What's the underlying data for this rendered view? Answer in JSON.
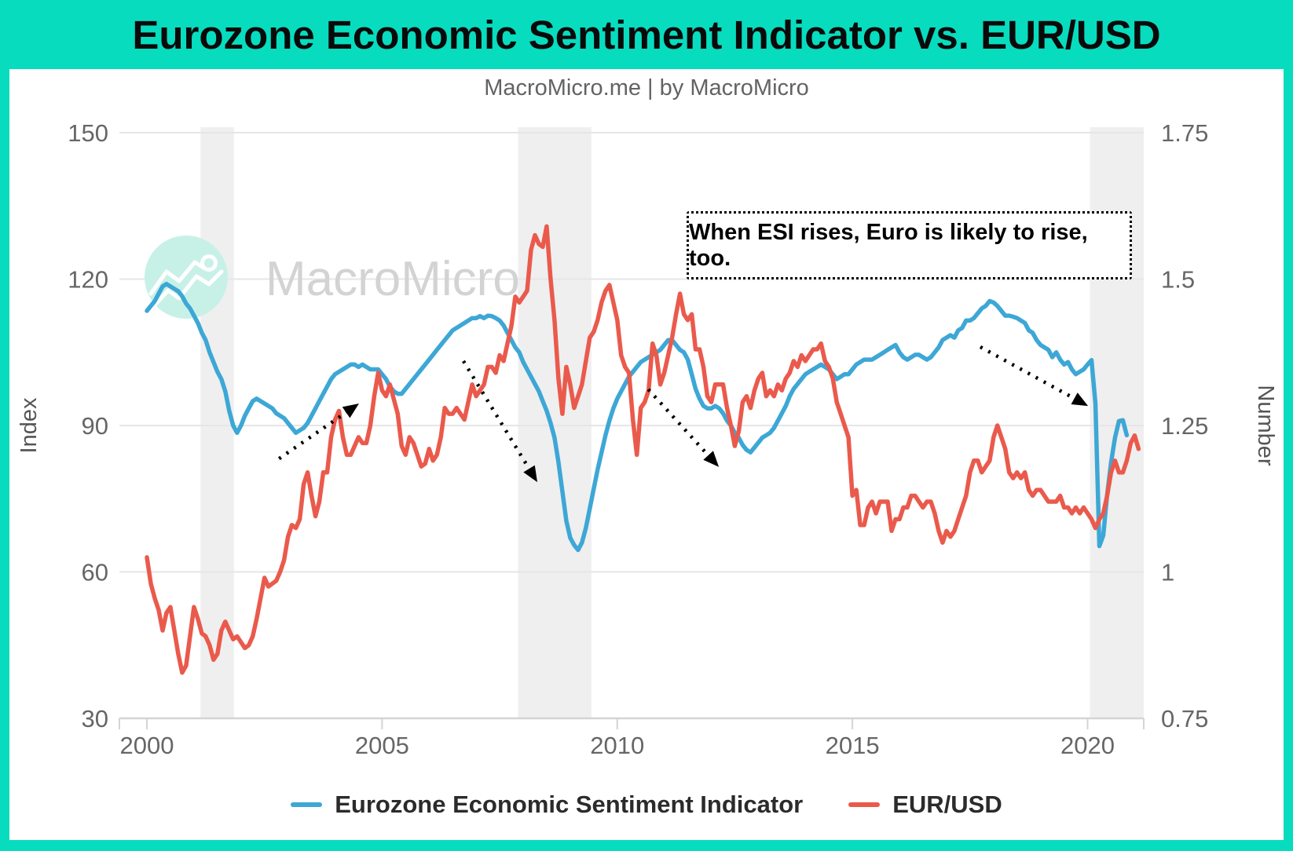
{
  "header": {
    "title": "Eurozone Economic Sentiment Indicator vs. EUR/USD",
    "subtitle": "MacroMicro.me | by MacroMicro"
  },
  "watermark": {
    "text": "MacroMicro",
    "logo": "macromicro-mountain-logo"
  },
  "annotation_box": {
    "text": "When ESI rises, Euro is likely to rise, too."
  },
  "colors": {
    "frame_teal": "#07dcbf",
    "esi_blue": "#3da7d6",
    "eurusd_red": "#ea5a4c",
    "recession_band": "#efefef",
    "gridline": "#e6e6e6",
    "axis_line": "#d4d4d4",
    "tick_label": "#666666",
    "watermark_gray": "#d3d3d3",
    "logo_mint": "#c7f1e7"
  },
  "legend": [
    {
      "label": "Eurozone Economic Sentiment Indicator",
      "color": "#3da7d6"
    },
    {
      "label": "EUR/USD",
      "color": "#ea5a4c"
    }
  ],
  "chart_data": {
    "type": "line",
    "title": "Eurozone Economic Sentiment Indicator vs. EUR/USD",
    "x_range": [
      2000,
      2021.21
    ],
    "x_ticks": [
      2000,
      2005,
      2010,
      2015,
      2020
    ],
    "left_axis": {
      "title": "Index",
      "range": [
        30,
        150
      ],
      "ticks": [
        150,
        120,
        90,
        60,
        30
      ]
    },
    "right_axis": {
      "title": "Number",
      "range": [
        0.75,
        1.75
      ],
      "ticks": [
        1.75,
        1.5,
        1.25,
        1,
        0.75
      ]
    },
    "grid": "horizontal",
    "legend_position": "bottom",
    "recession_bands": [
      [
        2001.14,
        2001.85
      ],
      [
        2007.89,
        2009.45
      ],
      [
        2020.05,
        2021.21
      ]
    ],
    "series": [
      {
        "name": "Eurozone Economic Sentiment Indicator",
        "axis": "left",
        "color": "#3da7d6",
        "start_year": 2000,
        "points_per_year": 12,
        "values": [
          113.5,
          114.5,
          115.5,
          117,
          118.5,
          119,
          118.5,
          118,
          117.5,
          116.5,
          115,
          114,
          112.5,
          111,
          109,
          107.5,
          105,
          103,
          101,
          99.5,
          97,
          93,
          90,
          88.5,
          90,
          92,
          93.5,
          95,
          95.5,
          95,
          94.5,
          94,
          93.5,
          92.5,
          92,
          91.5,
          90.5,
          89.5,
          88.5,
          89,
          89.5,
          90.5,
          92,
          93.5,
          95,
          96.5,
          98,
          99.5,
          100.5,
          101,
          101.5,
          102,
          102.5,
          102.5,
          102,
          102.5,
          102,
          101.5,
          101.5,
          101.5,
          100.5,
          99.5,
          98,
          97,
          96.5,
          96.5,
          97.5,
          98.5,
          99.5,
          100.5,
          101.5,
          102.5,
          103.5,
          104.5,
          105.5,
          106.5,
          107.5,
          108.5,
          109.5,
          110,
          110.5,
          111,
          111.5,
          112,
          112,
          112.4,
          112,
          112.5,
          112.4,
          112,
          111.5,
          110.5,
          109,
          107.5,
          106,
          105,
          103,
          101.5,
          100,
          98.5,
          97,
          95,
          93,
          90.5,
          87.5,
          82.5,
          76.5,
          70.5,
          67,
          65.5,
          64.5,
          66,
          69,
          73,
          77,
          81,
          84.5,
          88,
          91,
          93.5,
          95.5,
          97,
          98.5,
          100,
          101,
          102,
          103,
          103.5,
          104,
          104.5,
          105,
          105.5,
          106.5,
          107.5,
          107.5,
          106.5,
          105.5,
          105,
          103.5,
          100.5,
          97.5,
          95.5,
          94,
          93.5,
          93.5,
          94,
          93.5,
          92.5,
          91,
          90,
          88.5,
          87.5,
          86,
          85,
          84.5,
          85.5,
          86.5,
          87.5,
          88,
          88.5,
          89.5,
          91,
          92.5,
          94,
          96,
          97.5,
          98.5,
          99.5,
          100.5,
          101,
          101.5,
          102,
          102.5,
          102,
          101.5,
          100.5,
          99.5,
          100,
          100.5,
          100.5,
          101.5,
          102.5,
          103,
          103.5,
          103.5,
          103.5,
          104,
          104.5,
          105,
          105.5,
          106,
          106.5,
          105,
          104,
          103.5,
          104,
          104.5,
          104.5,
          104,
          103.5,
          104,
          105,
          106,
          107.5,
          108,
          108.5,
          108,
          109.5,
          110,
          111.5,
          111.5,
          112,
          113,
          114,
          114.5,
          115.5,
          115.2,
          114.5,
          113.5,
          112.5,
          112.5,
          112.3,
          112,
          111.5,
          111,
          109.5,
          109,
          107.5,
          106.5,
          106,
          105.5,
          104,
          105,
          103.5,
          102.5,
          103,
          101.5,
          100.5,
          101,
          101.5,
          102.5,
          103.4,
          94.5,
          65.3,
          67.5,
          75.8,
          82.4,
          87.5,
          90.9,
          91.1,
          88
        ]
      },
      {
        "name": "EUR/USD",
        "axis": "right",
        "color": "#ea5a4c",
        "start_year": 2000,
        "points_per_year": 12,
        "values": [
          1.025,
          0.98,
          0.955,
          0.935,
          0.9,
          0.93,
          0.94,
          0.9,
          0.86,
          0.828,
          0.84,
          0.89,
          0.94,
          0.92,
          0.895,
          0.89,
          0.875,
          0.85,
          0.86,
          0.9,
          0.915,
          0.9,
          0.885,
          0.89,
          0.88,
          0.87,
          0.875,
          0.89,
          0.92,
          0.955,
          0.99,
          0.975,
          0.98,
          0.985,
          1.0,
          1.02,
          1.06,
          1.08,
          1.075,
          1.09,
          1.15,
          1.17,
          1.13,
          1.095,
          1.12,
          1.17,
          1.17,
          1.23,
          1.26,
          1.275,
          1.23,
          1.2,
          1.2,
          1.215,
          1.23,
          1.22,
          1.22,
          1.25,
          1.3,
          1.34,
          1.31,
          1.3,
          1.32,
          1.295,
          1.27,
          1.215,
          1.2,
          1.23,
          1.22,
          1.2,
          1.18,
          1.185,
          1.21,
          1.19,
          1.2,
          1.23,
          1.28,
          1.27,
          1.27,
          1.28,
          1.27,
          1.26,
          1.29,
          1.32,
          1.3,
          1.31,
          1.32,
          1.35,
          1.35,
          1.34,
          1.37,
          1.36,
          1.39,
          1.42,
          1.47,
          1.46,
          1.47,
          1.48,
          1.55,
          1.575,
          1.56,
          1.555,
          1.59,
          1.5,
          1.43,
          1.33,
          1.27,
          1.35,
          1.32,
          1.28,
          1.3,
          1.32,
          1.36,
          1.4,
          1.41,
          1.43,
          1.46,
          1.48,
          1.49,
          1.46,
          1.43,
          1.37,
          1.35,
          1.34,
          1.26,
          1.2,
          1.28,
          1.29,
          1.31,
          1.39,
          1.37,
          1.32,
          1.34,
          1.37,
          1.4,
          1.44,
          1.475,
          1.44,
          1.43,
          1.44,
          1.38,
          1.38,
          1.35,
          1.3,
          1.29,
          1.32,
          1.32,
          1.32,
          1.28,
          1.25,
          1.215,
          1.24,
          1.29,
          1.3,
          1.28,
          1.31,
          1.33,
          1.34,
          1.3,
          1.31,
          1.3,
          1.32,
          1.31,
          1.33,
          1.34,
          1.36,
          1.35,
          1.37,
          1.36,
          1.37,
          1.38,
          1.38,
          1.39,
          1.36,
          1.35,
          1.33,
          1.29,
          1.27,
          1.25,
          1.23,
          1.13,
          1.14,
          1.08,
          1.08,
          1.11,
          1.12,
          1.1,
          1.12,
          1.12,
          1.12,
          1.07,
          1.09,
          1.09,
          1.11,
          1.11,
          1.13,
          1.13,
          1.12,
          1.11,
          1.12,
          1.12,
          1.1,
          1.07,
          1.05,
          1.07,
          1.06,
          1.07,
          1.09,
          1.11,
          1.13,
          1.17,
          1.19,
          1.19,
          1.17,
          1.18,
          1.19,
          1.23,
          1.25,
          1.23,
          1.21,
          1.17,
          1.16,
          1.17,
          1.16,
          1.17,
          1.14,
          1.13,
          1.14,
          1.14,
          1.13,
          1.12,
          1.12,
          1.12,
          1.13,
          1.11,
          1.11,
          1.1,
          1.11,
          1.1,
          1.11,
          1.1,
          1.09,
          1.075,
          1.09,
          1.1,
          1.13,
          1.17,
          1.19,
          1.17,
          1.17,
          1.19,
          1.22,
          1.233,
          1.21
        ]
      }
    ],
    "trend_arrows": [
      {
        "axis": "left",
        "from": [
          2002.81,
          83.2
        ],
        "to": [
          2004.51,
          94.5
        ],
        "direction": "up-right"
      },
      {
        "axis": "left",
        "from": [
          2006.73,
          103.2
        ],
        "to": [
          2008.3,
          78.4
        ],
        "direction": "down-right"
      },
      {
        "axis": "left",
        "from": [
          2010.66,
          97.4
        ],
        "to": [
          2012.16,
          81.5
        ],
        "direction": "down-right"
      },
      {
        "axis": "left",
        "from": [
          2017.72,
          106.1
        ],
        "to": [
          2020.01,
          94.0
        ],
        "direction": "down-right"
      }
    ]
  }
}
